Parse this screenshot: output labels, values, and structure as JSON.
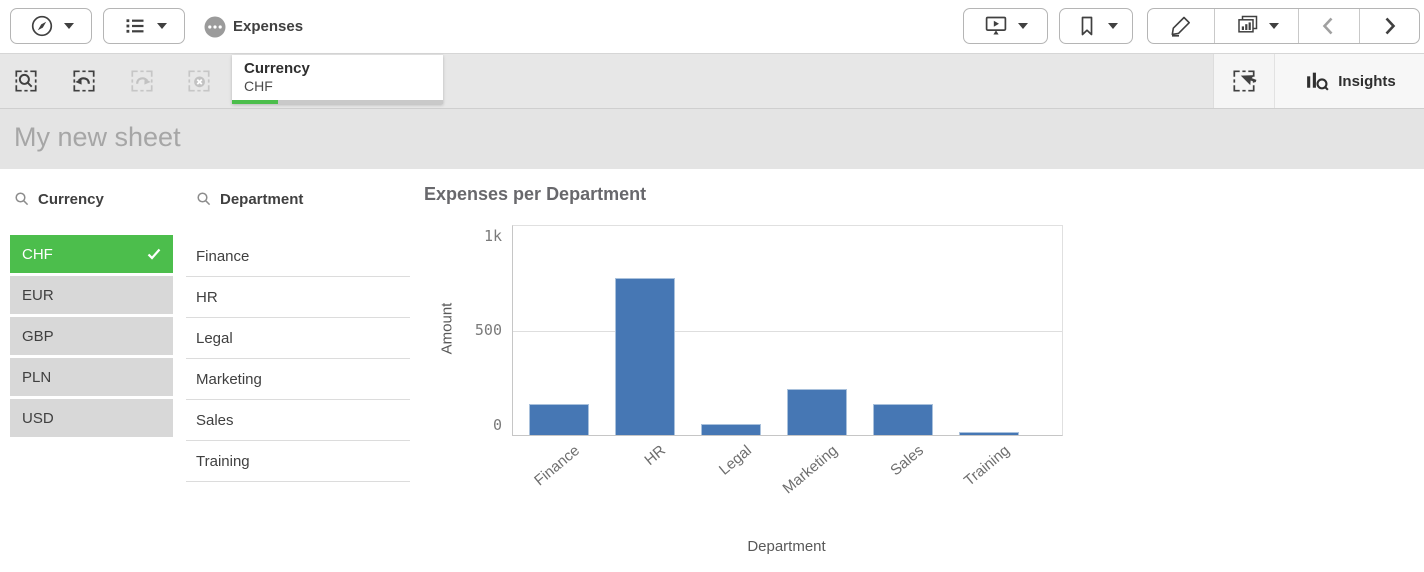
{
  "toolbar": {
    "app_title": "Expenses",
    "icons_left": [
      "navigation-menu",
      "app-overview",
      "global-menu"
    ],
    "icons_right": [
      "storytelling",
      "bookmarks",
      "edit-sheet",
      "sheets",
      "previous-sheet",
      "next-sheet"
    ]
  },
  "selections_bar": {
    "tools": [
      "smart-search",
      "step-back",
      "step-forward",
      "clear-all-selections"
    ],
    "current_selection": {
      "field": "Currency",
      "value": "CHF",
      "progress_pct": 22
    },
    "lasso_tool": "selections-lasso",
    "insights_label": "Insights"
  },
  "sheet": {
    "title": "My new sheet"
  },
  "filters": {
    "currency": {
      "title": "Currency",
      "items": [
        {
          "label": "CHF",
          "selected": true
        },
        {
          "label": "EUR",
          "selected": false
        },
        {
          "label": "GBP",
          "selected": false
        },
        {
          "label": "PLN",
          "selected": false
        },
        {
          "label": "USD",
          "selected": false
        }
      ]
    },
    "department": {
      "title": "Department",
      "items": [
        "Finance",
        "HR",
        "Legal",
        "Marketing",
        "Sales",
        "Training"
      ]
    }
  },
  "chart_data": {
    "type": "bar",
    "title": "Expenses per Department",
    "xlabel": "Department",
    "ylabel": "Amount",
    "categories": [
      "Finance",
      "HR",
      "Legal",
      "Marketing",
      "Sales",
      "Training"
    ],
    "values": [
      150,
      750,
      55,
      220,
      150,
      15
    ],
    "ylim": [
      0,
      1000
    ],
    "yticks": [
      {
        "label": "0",
        "value": 0
      },
      {
        "label": "500",
        "value": 500
      },
      {
        "label": "1k",
        "value": 1000
      }
    ],
    "grid": true,
    "legend": false,
    "bar_color": "#4677b4"
  },
  "colors": {
    "selection_green": "#4cbe4c",
    "bar_blue": "#4677b4",
    "selections_bar_bg": "#e7e7e7",
    "sheet_title_bg": "#e4e4e4",
    "list_item_bg": "#d8d8d8"
  }
}
